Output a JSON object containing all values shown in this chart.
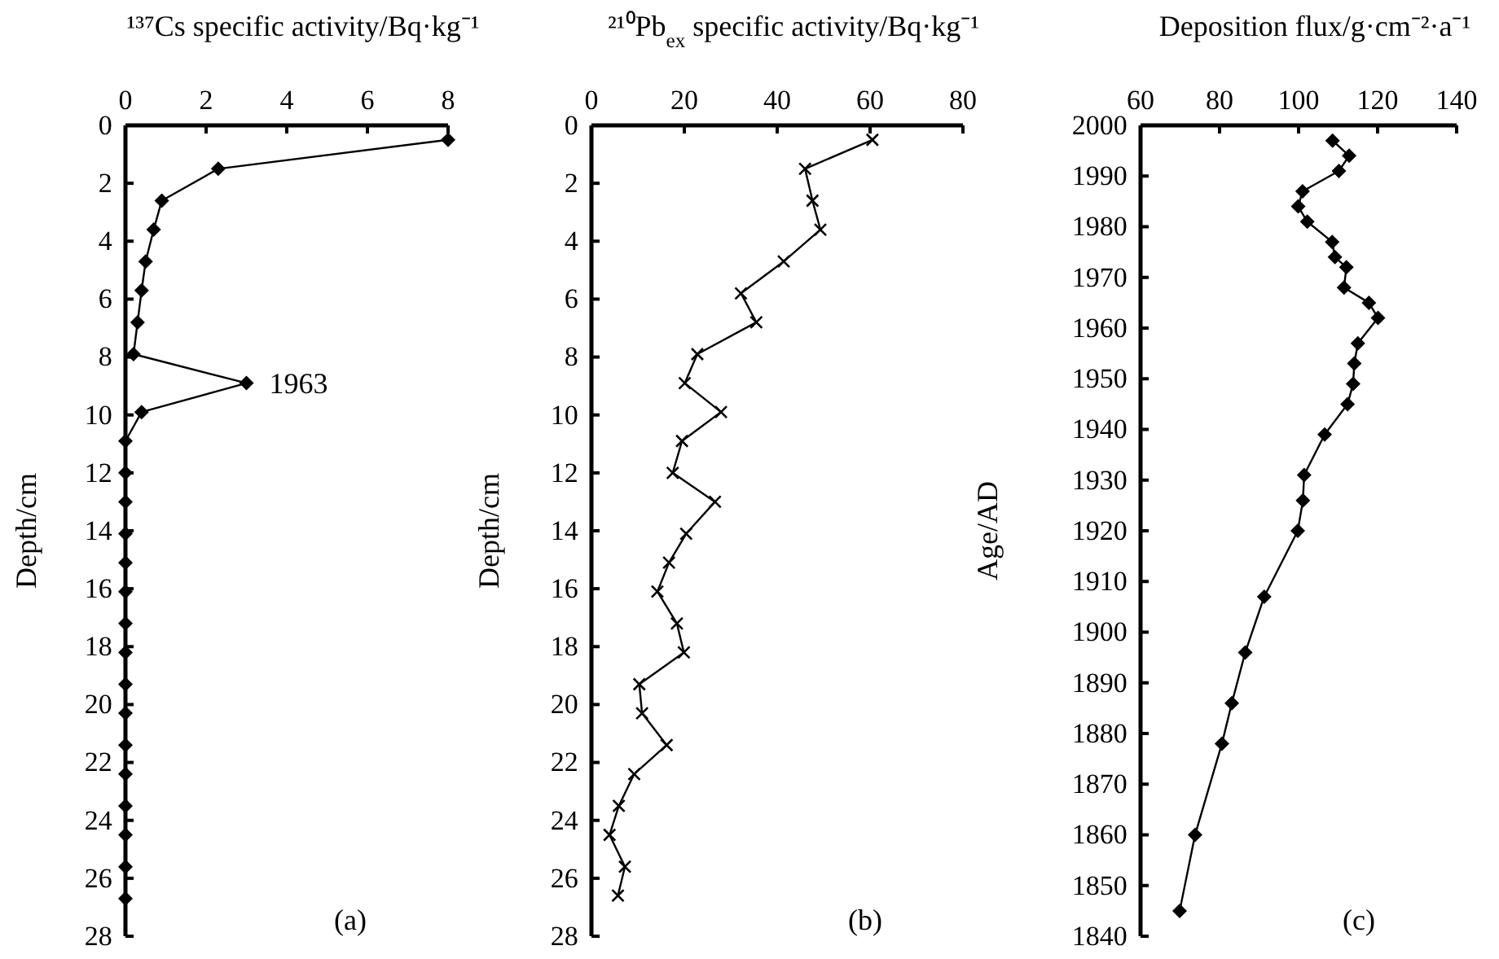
{
  "chart_data": [
    {
      "type": "line",
      "xlabel": "¹³⁷Cs specific activity/Bq·kg⁻¹",
      "ylabel": "Depth/cm",
      "marker": "diamond",
      "xlim": [
        0,
        8
      ],
      "xticks": [
        0,
        2,
        4,
        6,
        8
      ],
      "ylim": [
        28,
        0
      ],
      "yticks": [
        0,
        2,
        4,
        6,
        8,
        10,
        12,
        14,
        16,
        18,
        20,
        22,
        24,
        26,
        28
      ],
      "series": [
        {
          "color": "#000000",
          "x": [
            8.0,
            2.3,
            0.9,
            0.7,
            0.5,
            0.4,
            0.3,
            0.2,
            3.0,
            0.4,
            0,
            0,
            0,
            0,
            0,
            0,
            0,
            0,
            0,
            0,
            0,
            0,
            0,
            0,
            0,
            0
          ],
          "values": [
            0.5,
            1.5,
            2.6,
            3.6,
            4.7,
            5.7,
            6.8,
            7.9,
            8.9,
            9.9,
            10.9,
            12.0,
            13.0,
            14.1,
            15.1,
            16.1,
            17.2,
            18.2,
            19.3,
            20.3,
            21.4,
            22.4,
            23.5,
            24.5,
            25.6,
            26.7
          ]
        }
      ],
      "annotations": [
        {
          "text": "1963",
          "x": 3.0,
          "y": 8.9
        },
        "(a)"
      ]
    },
    {
      "type": "line",
      "xlabel": "²¹⁰Pb$_{ex}$ specific activity/Bq·kg⁻¹",
      "ylabel": "Depth/cm",
      "marker": "cross",
      "xlim": [
        0,
        80
      ],
      "xticks": [
        0,
        20,
        40,
        60,
        80
      ],
      "ylim": [
        28,
        0
      ],
      "yticks": [
        0,
        2,
        4,
        6,
        8,
        10,
        12,
        14,
        16,
        18,
        20,
        22,
        24,
        26,
        28
      ],
      "series": [
        {
          "color": "#000000",
          "x": [
            60.5,
            46,
            47.6,
            49.3,
            41.4,
            32.2,
            35.5,
            22.8,
            20.1,
            27.9,
            19.5,
            17.5,
            26.6,
            20.4,
            16.7,
            14.2,
            18.4,
            19.9,
            10.3,
            10.9,
            16.2,
            9.2,
            5.9,
            3.9,
            7.2,
            5.7
          ],
          "values": [
            0.5,
            1.5,
            2.6,
            3.6,
            4.7,
            5.8,
            6.8,
            7.9,
            8.9,
            9.9,
            10.9,
            12.0,
            13.0,
            14.1,
            15.1,
            16.1,
            17.2,
            18.2,
            19.3,
            20.3,
            21.4,
            22.4,
            23.5,
            24.5,
            25.6,
            26.6
          ]
        }
      ],
      "annotations": [
        "(b)"
      ]
    },
    {
      "type": "line",
      "xlabel": "Deposition flux/g·cm⁻²·a⁻¹",
      "ylabel": "Age/AD",
      "marker": "diamond",
      "xlim": [
        60,
        140
      ],
      "xticks": [
        60,
        80,
        100,
        120,
        140
      ],
      "ylim": [
        1840,
        2000
      ],
      "yticks": [
        1840,
        1850,
        1860,
        1870,
        1880,
        1890,
        1900,
        1910,
        1920,
        1930,
        1940,
        1950,
        1960,
        1970,
        1980,
        1990,
        2000
      ],
      "series": [
        {
          "color": "#000000",
          "x": [
            108.6,
            112.8,
            110.2,
            101,
            99.9,
            102.2,
            108.5,
            109.2,
            112.1,
            111.5,
            117.8,
            120.1,
            115,
            114.1,
            113.8,
            112.4,
            106.6,
            101.4,
            101.1,
            99.8,
            91.3,
            86.5,
            83.1,
            80.6,
            73.8,
            69.9
          ],
          "values": [
            1997,
            1994,
            1991,
            1987,
            1984,
            1981,
            1977,
            1974,
            1972,
            1968,
            1965,
            1962,
            1957,
            1953,
            1949,
            1945,
            1939,
            1931,
            1926,
            1920,
            1907,
            1896,
            1886,
            1878,
            1860,
            1845
          ]
        }
      ],
      "annotations": [
        "(c)"
      ]
    }
  ]
}
